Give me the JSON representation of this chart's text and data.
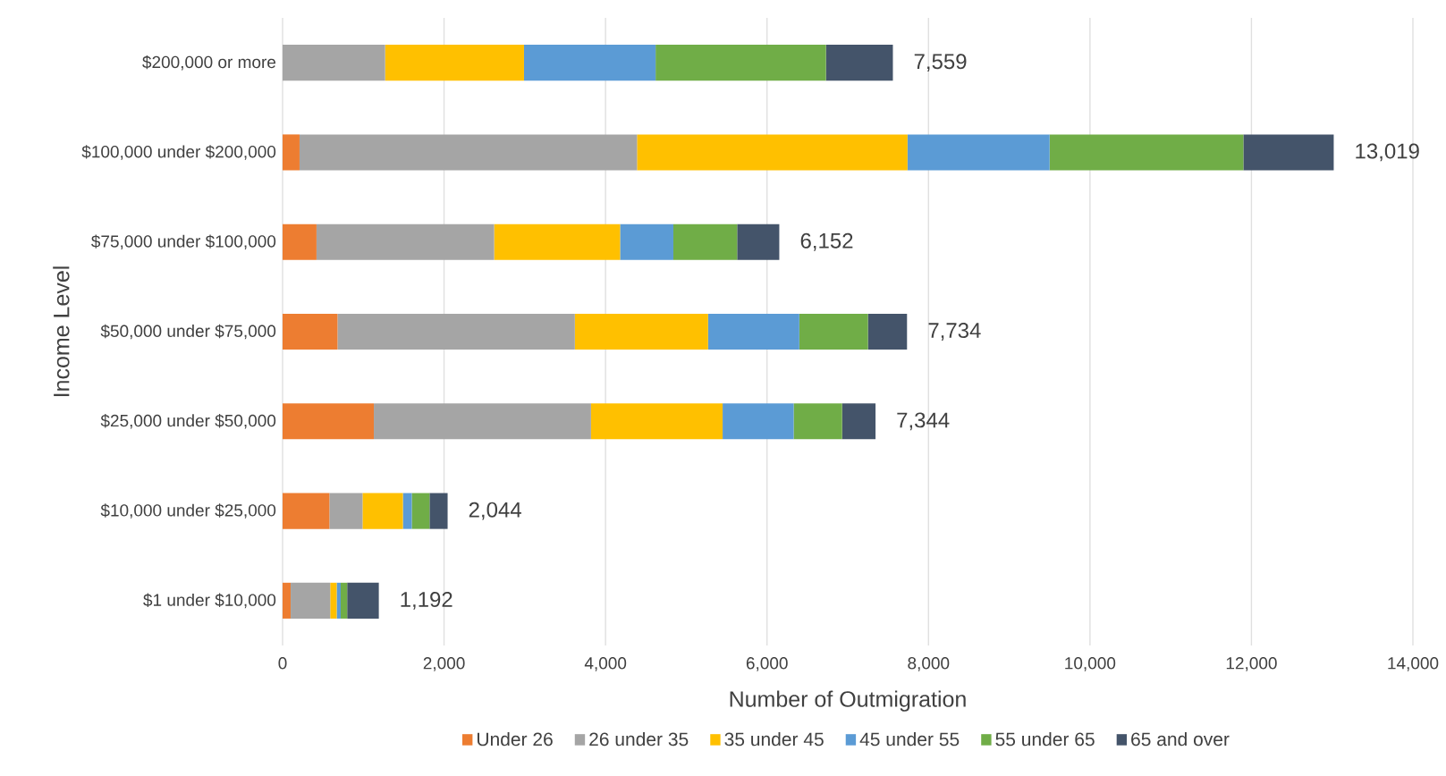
{
  "chart_data": {
    "type": "bar",
    "orientation": "horizontal",
    "stacked": true,
    "xlabel": "Number of Outmigration",
    "ylabel": "Income Level",
    "categories": [
      "$200,000 or more",
      "$100,000 under $200,000",
      "$75,000 under $100,000",
      "$50,000 under $75,000",
      "$25,000 under $50,000",
      "$10,000 under $25,000",
      "$1 under $10,000"
    ],
    "series": [
      {
        "name": "Under 26",
        "color": "#ed7d31",
        "values": [
          0,
          210,
          420,
          680,
          1130,
          580,
          100
        ]
      },
      {
        "name": "26 under 35",
        "color": "#a5a5a5",
        "values": [
          1270,
          4180,
          2200,
          2940,
          2690,
          410,
          490
        ]
      },
      {
        "name": "35 under 45",
        "color": "#ffc000",
        "values": [
          1720,
          3350,
          1560,
          1650,
          1630,
          500,
          80
        ]
      },
      {
        "name": "45 under 55",
        "color": "#5b9bd5",
        "values": [
          1630,
          1760,
          660,
          1130,
          880,
          110,
          50
        ]
      },
      {
        "name": "55 under 65",
        "color": "#70ad47",
        "values": [
          2110,
          2400,
          790,
          850,
          600,
          220,
          80
        ]
      },
      {
        "name": "65 and over",
        "color": "#44546a",
        "values": [
          829,
          1119,
          522,
          484,
          414,
          224,
          392
        ]
      }
    ],
    "totals": [
      "7,559",
      "13,019",
      "6,152",
      "7,734",
      "7,344",
      "2,044",
      "1,192"
    ],
    "xlim": [
      0,
      14000
    ],
    "xticks": [
      0,
      {
        "value": 2000,
        "label": "2,000"
      },
      {
        "value": 4000,
        "label": "4,000"
      },
      {
        "value": 6000,
        "label": "6,000"
      },
      {
        "value": 8000,
        "label": "8,000"
      },
      {
        "value": 10000,
        "label": "10,000"
      },
      {
        "value": 12000,
        "label": "12,000"
      },
      {
        "value": 14000,
        "label": "14,000"
      }
    ],
    "grid": "x",
    "legend": "bottom"
  }
}
